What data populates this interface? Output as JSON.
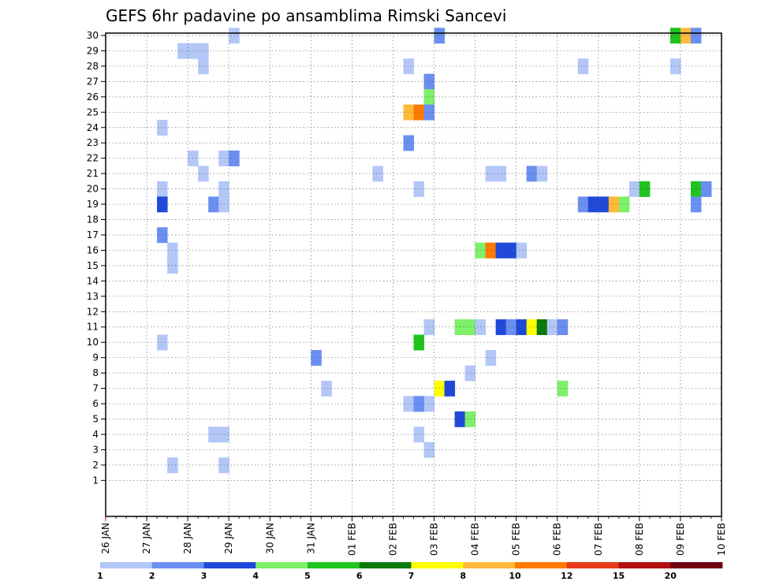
{
  "chart_data": {
    "type": "heatmap",
    "title": "GEFS 6hr padavine po ansamblima Rimski Sancevi",
    "x_tick_labels": [
      "26 JAN",
      "27 JAN",
      "28 JAN",
      "29 JAN",
      "30 JAN",
      "31 JAN",
      "01 FEB",
      "02 FEB",
      "03 FEB",
      "04 FEB",
      "05 FEB",
      "06 FEB",
      "07 FEB",
      "08 FEB",
      "09 FEB",
      "10 FEB"
    ],
    "y_tick_labels": [
      "1",
      "2",
      "3",
      "4",
      "5",
      "6",
      "7",
      "8",
      "9",
      "10",
      "11",
      "12",
      "13",
      "14",
      "15",
      "16",
      "17",
      "18",
      "19",
      "20",
      "21",
      "22",
      "23",
      "24",
      "25",
      "26",
      "27",
      "28",
      "29",
      "30"
    ],
    "xlim_days": [
      0,
      15
    ],
    "ylim": [
      0,
      30
    ],
    "step_days": 0.25,
    "grid": true,
    "colorbar": {
      "levels": [
        "1",
        "2",
        "3",
        "4",
        "5",
        "6",
        "7",
        "8",
        "10",
        "12",
        "15",
        "20"
      ],
      "colors": [
        "#b3c7f7",
        "#6a8ff0",
        "#1f49d9",
        "#7ef06a",
        "#1fc41f",
        "#0a7a0a",
        "#ffff00",
        "#ffba3a",
        "#ff7a00",
        "#e83a1a",
        "#b01010",
        "#700010"
      ]
    },
    "cells": [
      {
        "m": 30,
        "d": 3.0,
        "c": 0
      },
      {
        "m": 30,
        "d": 8.0,
        "c": 1
      },
      {
        "m": 30,
        "d": 13.75,
        "c": 4
      },
      {
        "m": 30,
        "d": 14.0,
        "c": 7
      },
      {
        "m": 30,
        "d": 14.25,
        "c": 1
      },
      {
        "m": 29,
        "d": 1.75,
        "c": 0
      },
      {
        "m": 29,
        "d": 2.0,
        "c": 0
      },
      {
        "m": 29,
        "d": 2.25,
        "c": 0
      },
      {
        "m": 28,
        "d": 2.25,
        "c": 0
      },
      {
        "m": 28,
        "d": 7.25,
        "c": 0
      },
      {
        "m": 28,
        "d": 11.5,
        "c": 0
      },
      {
        "m": 28,
        "d": 13.75,
        "c": 0
      },
      {
        "m": 27,
        "d": 7.75,
        "c": 1
      },
      {
        "m": 26,
        "d": 7.75,
        "c": 3
      },
      {
        "m": 25,
        "d": 7.25,
        "c": 7
      },
      {
        "m": 25,
        "d": 7.5,
        "c": 8
      },
      {
        "m": 25,
        "d": 7.75,
        "c": 1
      },
      {
        "m": 24,
        "d": 1.25,
        "c": 0
      },
      {
        "m": 23,
        "d": 7.25,
        "c": 1
      },
      {
        "m": 22,
        "d": 2.0,
        "c": 0
      },
      {
        "m": 22,
        "d": 2.75,
        "c": 0
      },
      {
        "m": 22,
        "d": 3.0,
        "c": 1
      },
      {
        "m": 21,
        "d": 2.25,
        "c": 0
      },
      {
        "m": 21,
        "d": 6.5,
        "c": 0
      },
      {
        "m": 21,
        "d": 9.25,
        "c": 0
      },
      {
        "m": 21,
        "d": 9.5,
        "c": 0
      },
      {
        "m": 21,
        "d": 10.25,
        "c": 1
      },
      {
        "m": 21,
        "d": 10.5,
        "c": 0
      },
      {
        "m": 20,
        "d": 1.25,
        "c": 0
      },
      {
        "m": 20,
        "d": 2.75,
        "c": 0
      },
      {
        "m": 20,
        "d": 7.5,
        "c": 0
      },
      {
        "m": 20,
        "d": 12.75,
        "c": 0
      },
      {
        "m": 20,
        "d": 13.0,
        "c": 4
      },
      {
        "m": 20,
        "d": 14.25,
        "c": 4
      },
      {
        "m": 20,
        "d": 14.5,
        "c": 1
      },
      {
        "m": 19,
        "d": 1.25,
        "c": 2
      },
      {
        "m": 19,
        "d": 2.5,
        "c": 1
      },
      {
        "m": 19,
        "d": 2.75,
        "c": 0
      },
      {
        "m": 19,
        "d": 11.5,
        "c": 1
      },
      {
        "m": 19,
        "d": 11.75,
        "c": 2
      },
      {
        "m": 19,
        "d": 12.0,
        "c": 2
      },
      {
        "m": 19,
        "d": 12.25,
        "c": 7
      },
      {
        "m": 19,
        "d": 12.5,
        "c": 3
      },
      {
        "m": 19,
        "d": 14.25,
        "c": 1
      },
      {
        "m": 17,
        "d": 1.25,
        "c": 1
      },
      {
        "m": 16,
        "d": 1.5,
        "c": 0
      },
      {
        "m": 16,
        "d": 9.0,
        "c": 3
      },
      {
        "m": 16,
        "d": 9.25,
        "c": 8
      },
      {
        "m": 16,
        "d": 9.5,
        "c": 2
      },
      {
        "m": 16,
        "d": 9.75,
        "c": 2
      },
      {
        "m": 16,
        "d": 10.0,
        "c": 0
      },
      {
        "m": 15,
        "d": 1.5,
        "c": 0
      },
      {
        "m": 11,
        "d": 7.75,
        "c": 0
      },
      {
        "m": 11,
        "d": 8.5,
        "c": 3
      },
      {
        "m": 11,
        "d": 8.75,
        "c": 3
      },
      {
        "m": 11,
        "d": 9.0,
        "c": 0
      },
      {
        "m": 11,
        "d": 9.5,
        "c": 2
      },
      {
        "m": 11,
        "d": 9.75,
        "c": 1
      },
      {
        "m": 11,
        "d": 10.0,
        "c": 2
      },
      {
        "m": 11,
        "d": 10.25,
        "c": 6
      },
      {
        "m": 11,
        "d": 10.5,
        "c": 5
      },
      {
        "m": 11,
        "d": 10.75,
        "c": 0
      },
      {
        "m": 11,
        "d": 11.0,
        "c": 1
      },
      {
        "m": 10,
        "d": 1.25,
        "c": 0
      },
      {
        "m": 10,
        "d": 7.5,
        "c": 4
      },
      {
        "m": 9,
        "d": 5.0,
        "c": 1
      },
      {
        "m": 9,
        "d": 9.25,
        "c": 0
      },
      {
        "m": 8,
        "d": 8.75,
        "c": 0
      },
      {
        "m": 7,
        "d": 5.25,
        "c": 0
      },
      {
        "m": 7,
        "d": 8.0,
        "c": 6
      },
      {
        "m": 7,
        "d": 8.25,
        "c": 2
      },
      {
        "m": 7,
        "d": 11.0,
        "c": 3
      },
      {
        "m": 6,
        "d": 7.75,
        "c": 0
      },
      {
        "m": 6,
        "d": 7.25,
        "c": 0
      },
      {
        "m": 6,
        "d": 7.5,
        "c": 1
      },
      {
        "m": 5,
        "d": 8.5,
        "c": 2
      },
      {
        "m": 5,
        "d": 8.75,
        "c": 3
      },
      {
        "m": 4,
        "d": 2.5,
        "c": 0
      },
      {
        "m": 4,
        "d": 2.75,
        "c": 0
      },
      {
        "m": 4,
        "d": 7.5,
        "c": 0
      },
      {
        "m": 3,
        "d": 7.75,
        "c": 0
      },
      {
        "m": 2,
        "d": 1.5,
        "c": 0
      },
      {
        "m": 2,
        "d": 2.75,
        "c": 0
      }
    ]
  }
}
